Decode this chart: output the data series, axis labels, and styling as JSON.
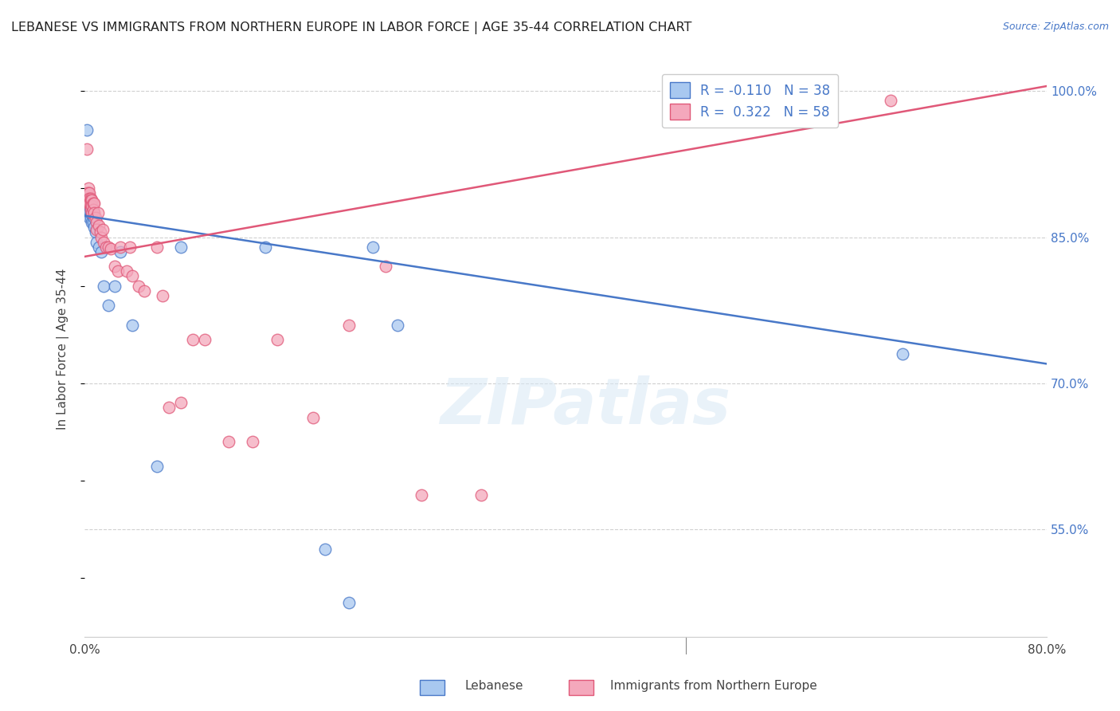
{
  "title": "LEBANESE VS IMMIGRANTS FROM NORTHERN EUROPE IN LABOR FORCE | AGE 35-44 CORRELATION CHART",
  "source": "Source: ZipAtlas.com",
  "ylabel": "In Labor Force | Age 35-44",
  "xlim": [
    0.0,
    0.8
  ],
  "ylim": [
    0.44,
    1.03
  ],
  "yticks": [
    0.55,
    0.7,
    0.85,
    1.0
  ],
  "ytick_labels": [
    "55.0%",
    "70.0%",
    "85.0%",
    "100.0%"
  ],
  "blue_R": -0.11,
  "blue_N": 38,
  "pink_R": 0.322,
  "pink_N": 58,
  "blue_color": "#a8c8f0",
  "pink_color": "#f4a8bc",
  "blue_line_color": "#4878c8",
  "pink_line_color": "#e05878",
  "legend_blue_label": "Lebanese",
  "legend_pink_label": "Immigrants from Northern Europe",
  "watermark": "ZIPatlas",
  "blue_x": [
    0.001,
    0.002,
    0.002,
    0.003,
    0.003,
    0.003,
    0.004,
    0.004,
    0.004,
    0.004,
    0.005,
    0.005,
    0.005,
    0.005,
    0.006,
    0.006,
    0.006,
    0.007,
    0.007,
    0.008,
    0.008,
    0.009,
    0.01,
    0.012,
    0.014,
    0.016,
    0.02,
    0.025,
    0.03,
    0.04,
    0.06,
    0.08,
    0.15,
    0.2,
    0.22,
    0.24,
    0.26,
    0.68
  ],
  "blue_y": [
    0.89,
    0.96,
    0.89,
    0.885,
    0.88,
    0.875,
    0.885,
    0.878,
    0.875,
    0.87,
    0.885,
    0.88,
    0.875,
    0.87,
    0.88,
    0.873,
    0.865,
    0.875,
    0.865,
    0.87,
    0.86,
    0.855,
    0.845,
    0.84,
    0.835,
    0.8,
    0.78,
    0.8,
    0.835,
    0.76,
    0.615,
    0.84,
    0.84,
    0.53,
    0.475,
    0.84,
    0.76,
    0.73
  ],
  "pink_x": [
    0.001,
    0.001,
    0.002,
    0.002,
    0.002,
    0.003,
    0.003,
    0.003,
    0.003,
    0.004,
    0.004,
    0.004,
    0.005,
    0.005,
    0.005,
    0.005,
    0.006,
    0.006,
    0.006,
    0.007,
    0.007,
    0.008,
    0.008,
    0.009,
    0.01,
    0.01,
    0.011,
    0.012,
    0.013,
    0.014,
    0.015,
    0.016,
    0.018,
    0.02,
    0.022,
    0.025,
    0.028,
    0.03,
    0.035,
    0.038,
    0.04,
    0.045,
    0.05,
    0.06,
    0.065,
    0.07,
    0.08,
    0.09,
    0.1,
    0.12,
    0.14,
    0.16,
    0.19,
    0.22,
    0.25,
    0.28,
    0.33,
    0.67
  ],
  "pink_y": [
    0.895,
    0.89,
    0.94,
    0.895,
    0.89,
    0.9,
    0.895,
    0.89,
    0.885,
    0.895,
    0.89,
    0.885,
    0.89,
    0.888,
    0.883,
    0.878,
    0.888,
    0.882,
    0.875,
    0.885,
    0.878,
    0.885,
    0.875,
    0.87,
    0.865,
    0.858,
    0.875,
    0.862,
    0.855,
    0.85,
    0.858,
    0.845,
    0.84,
    0.84,
    0.838,
    0.82,
    0.815,
    0.84,
    0.815,
    0.84,
    0.81,
    0.8,
    0.795,
    0.84,
    0.79,
    0.675,
    0.68,
    0.745,
    0.745,
    0.64,
    0.64,
    0.745,
    0.665,
    0.76,
    0.82,
    0.585,
    0.585,
    0.99
  ],
  "blue_line_x0": 0.0,
  "blue_line_y0": 0.872,
  "blue_line_x1": 0.8,
  "blue_line_y1": 0.72,
  "pink_line_x0": 0.0,
  "pink_line_y0": 0.83,
  "pink_line_x1": 0.8,
  "pink_line_y1": 1.005
}
